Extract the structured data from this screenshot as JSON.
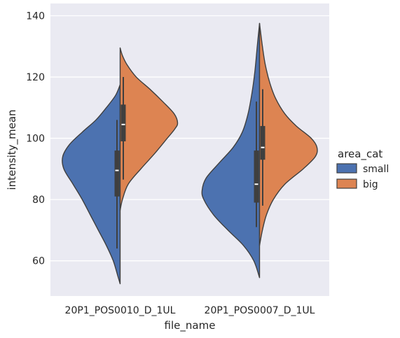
{
  "chart_data": {
    "type": "violin",
    "split": true,
    "x_field": "file_name",
    "y_field": "intensity_mean",
    "xlabel": "file_name",
    "ylabel": "intensity_mean",
    "ylim": [
      48.5,
      144
    ],
    "yticks": [
      60,
      80,
      100,
      120,
      140
    ],
    "grid": true,
    "legend": {
      "title": "area_cat",
      "position": "right",
      "entries": [
        "small",
        "big"
      ]
    },
    "colors": {
      "small": "#4c72b0",
      "big": "#dd8452",
      "background": "#eaeaf2",
      "box": "#3f3f3f",
      "outline": "#3f3f3f"
    },
    "categories": [
      "20P1_POS0010_D_1UL",
      "20P1_POS0007_D_1UL"
    ],
    "series": [
      {
        "name": "small",
        "groups": [
          {
            "category": "20P1_POS0010_D_1UL",
            "median": 89.5,
            "q1": 81,
            "q3": 96,
            "whisker_low": 64,
            "whisker_high": 106,
            "density": [
              [
                52.5,
                0
              ],
              [
                55,
                0.04
              ],
              [
                60,
                0.12
              ],
              [
                65,
                0.24
              ],
              [
                70,
                0.38
              ],
              [
                75,
                0.52
              ],
              [
                80,
                0.66
              ],
              [
                85,
                0.82
              ],
              [
                90,
                0.98
              ],
              [
                94,
                1.0
              ],
              [
                98,
                0.88
              ],
              [
                102,
                0.66
              ],
              [
                106,
                0.42
              ],
              [
                110,
                0.24
              ],
              [
                114,
                0.08
              ],
              [
                117.5,
                0
              ]
            ]
          },
          {
            "category": "20P1_POS0007_D_1UL",
            "median": 85,
            "q1": 79,
            "q3": 96,
            "whisker_low": 71,
            "whisker_high": 112,
            "density": [
              [
                54.5,
                0
              ],
              [
                60,
                0.1
              ],
              [
                65,
                0.28
              ],
              [
                70,
                0.55
              ],
              [
                75,
                0.8
              ],
              [
                80,
                0.97
              ],
              [
                83,
                1.0
              ],
              [
                87,
                0.93
              ],
              [
                92,
                0.7
              ],
              [
                97,
                0.46
              ],
              [
                102,
                0.3
              ],
              [
                108,
                0.2
              ],
              [
                115,
                0.13
              ],
              [
                122,
                0.08
              ],
              [
                130,
                0.04
              ],
              [
                137.5,
                0
              ]
            ]
          }
        ]
      },
      {
        "name": "big",
        "groups": [
          {
            "category": "20P1_POS0010_D_1UL",
            "median": 104.5,
            "q1": 99,
            "q3": 111,
            "whisker_low": 86.5,
            "whisker_high": 120,
            "density": [
              [
                76.5,
                0
              ],
              [
                80,
                0.04
              ],
              [
                85,
                0.14
              ],
              [
                90,
                0.36
              ],
              [
                95,
                0.6
              ],
              [
                100,
                0.82
              ],
              [
                103,
                0.95
              ],
              [
                105,
                1.0
              ],
              [
                108,
                0.94
              ],
              [
                112,
                0.74
              ],
              [
                116,
                0.52
              ],
              [
                120,
                0.28
              ],
              [
                124,
                0.12
              ],
              [
                127,
                0.04
              ],
              [
                129.5,
                0
              ]
            ]
          },
          {
            "category": "20P1_POS0007_D_1UL",
            "median": 97,
            "q1": 93,
            "q3": 104,
            "whisker_low": 78,
            "whisker_high": 116,
            "density": [
              [
                65,
                0
              ],
              [
                70,
                0.05
              ],
              [
                75,
                0.12
              ],
              [
                80,
                0.24
              ],
              [
                85,
                0.44
              ],
              [
                90,
                0.76
              ],
              [
                94,
                0.97
              ],
              [
                97,
                1.0
              ],
              [
                100,
                0.9
              ],
              [
                104,
                0.64
              ],
              [
                108,
                0.44
              ],
              [
                113,
                0.28
              ],
              [
                118,
                0.18
              ],
              [
                124,
                0.1
              ],
              [
                130,
                0.05
              ],
              [
                137.5,
                0
              ]
            ]
          }
        ]
      }
    ]
  }
}
